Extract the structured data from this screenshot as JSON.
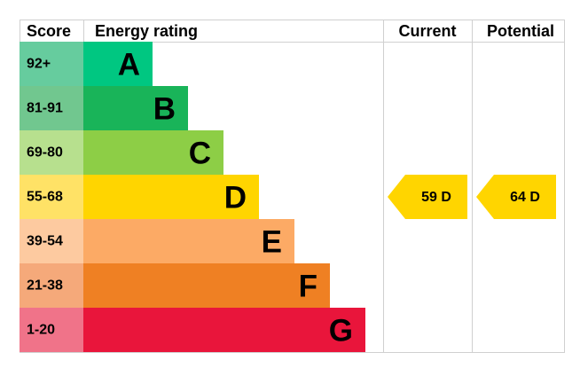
{
  "header": {
    "score": "Score",
    "energy_rating": "Energy rating",
    "current": "Current",
    "potential": "Potential"
  },
  "bands": [
    {
      "range": "92+",
      "letter": "A",
      "color": "#00c781",
      "score_color": "#66cc9e"
    },
    {
      "range": "81-91",
      "letter": "B",
      "color": "#19b459",
      "score_color": "#71c78f"
    },
    {
      "range": "69-80",
      "letter": "C",
      "color": "#8dce46",
      "score_color": "#b7e08e"
    },
    {
      "range": "55-68",
      "letter": "D",
      "color": "#ffd500",
      "score_color": "#ffe266"
    },
    {
      "range": "39-54",
      "letter": "E",
      "color": "#fcaa65",
      "score_color": "#fdcaa0"
    },
    {
      "range": "21-38",
      "letter": "F",
      "color": "#ef8023",
      "score_color": "#f5a97a"
    },
    {
      "range": "1-20",
      "letter": "G",
      "color": "#e9153b",
      "score_color": "#f07389"
    }
  ],
  "current": {
    "score": 59,
    "rating": "D"
  },
  "potential": {
    "score": 64,
    "rating": "D"
  }
}
